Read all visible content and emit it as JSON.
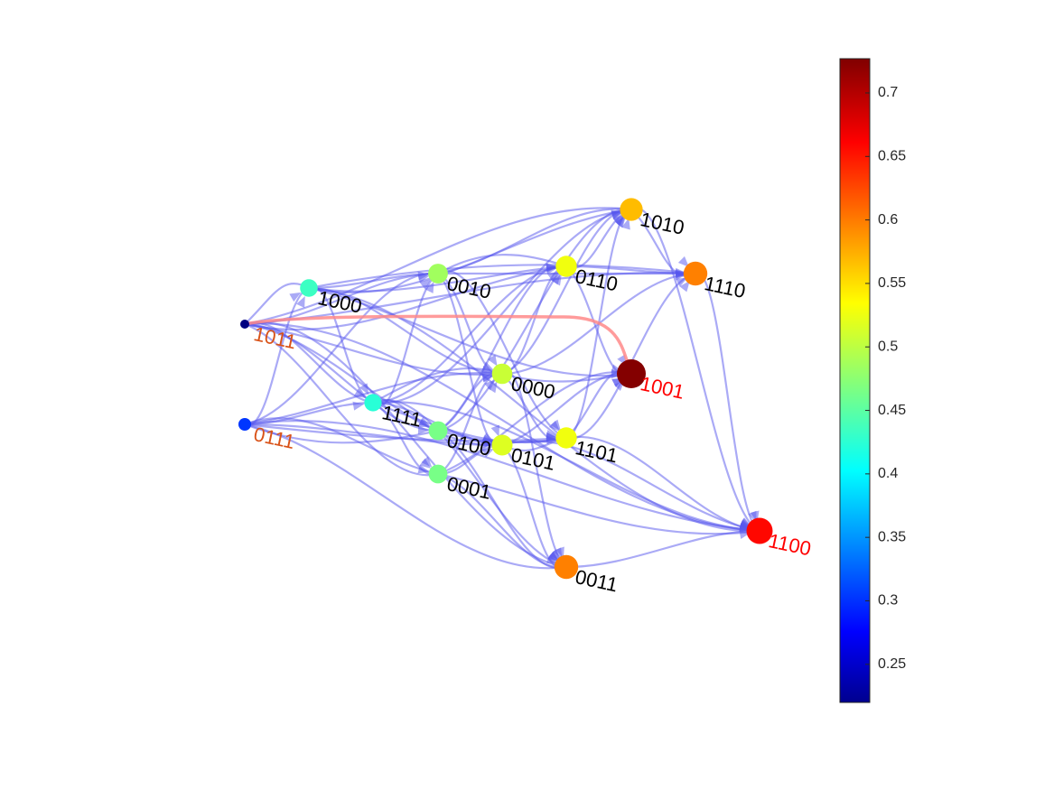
{
  "graph": {
    "nodes": [
      {
        "id": "1011",
        "value": 0.22,
        "label_color": "#d95319"
      },
      {
        "id": "0111",
        "value": 0.31,
        "label_color": "#d95319"
      },
      {
        "id": "1000",
        "value": 0.44,
        "label_color": "#000000"
      },
      {
        "id": "1111",
        "value": 0.43,
        "label_color": "#000000"
      },
      {
        "id": "0010",
        "value": 0.49,
        "label_color": "#000000"
      },
      {
        "id": "0100",
        "value": 0.47,
        "label_color": "#000000"
      },
      {
        "id": "0001",
        "value": 0.47,
        "label_color": "#000000"
      },
      {
        "id": "0000",
        "value": 0.51,
        "label_color": "#000000"
      },
      {
        "id": "0101",
        "value": 0.52,
        "label_color": "#000000"
      },
      {
        "id": "0110",
        "value": 0.53,
        "label_color": "#000000"
      },
      {
        "id": "1101",
        "value": 0.53,
        "label_color": "#000000"
      },
      {
        "id": "1010",
        "value": 0.57,
        "label_color": "#000000"
      },
      {
        "id": "1110",
        "value": 0.6,
        "label_color": "#000000"
      },
      {
        "id": "0011",
        "value": 0.6,
        "label_color": "#000000"
      },
      {
        "id": "1100",
        "value": 0.66,
        "label_color": "#ff0000"
      },
      {
        "id": "1001",
        "value": 0.725,
        "label_color": "#ff0000"
      }
    ],
    "edges": [
      [
        "1011",
        "1000"
      ],
      [
        "1011",
        "1111"
      ],
      [
        "1011",
        "0010"
      ],
      [
        "1011",
        "0000"
      ],
      [
        "1011",
        "0110"
      ],
      [
        "1011",
        "1010"
      ],
      [
        "1011",
        "1110"
      ],
      [
        "1011",
        "0100"
      ],
      [
        "1011",
        "0101"
      ],
      [
        "1011",
        "0001"
      ],
      [
        "1011",
        "0011"
      ],
      [
        "1011",
        "1100"
      ],
      [
        "0111",
        "1111"
      ],
      [
        "0111",
        "1000"
      ],
      [
        "0111",
        "0100"
      ],
      [
        "0111",
        "0001"
      ],
      [
        "0111",
        "0000"
      ],
      [
        "0111",
        "0101"
      ],
      [
        "0111",
        "1101"
      ],
      [
        "0111",
        "0011"
      ],
      [
        "0111",
        "1100"
      ],
      [
        "0111",
        "0010"
      ],
      [
        "1000",
        "0010"
      ],
      [
        "1000",
        "0110"
      ],
      [
        "1000",
        "1010"
      ],
      [
        "1000",
        "1110"
      ],
      [
        "1000",
        "1111"
      ],
      [
        "1000",
        "0000"
      ],
      [
        "1000",
        "1100"
      ],
      [
        "1000",
        "1001"
      ],
      [
        "1111",
        "0000"
      ],
      [
        "1111",
        "0100"
      ],
      [
        "1111",
        "0101"
      ],
      [
        "1111",
        "0001"
      ],
      [
        "1111",
        "1101"
      ],
      [
        "1111",
        "0011"
      ],
      [
        "1111",
        "1100"
      ],
      [
        "1111",
        "0110"
      ],
      [
        "1111",
        "1010"
      ],
      [
        "1111",
        "0010"
      ],
      [
        "0010",
        "0110"
      ],
      [
        "0010",
        "1010"
      ],
      [
        "0010",
        "1110"
      ],
      [
        "0010",
        "0000"
      ],
      [
        "0010",
        "0101"
      ],
      [
        "0010",
        "1101"
      ],
      [
        "0100",
        "0000"
      ],
      [
        "0100",
        "0101"
      ],
      [
        "0100",
        "1101"
      ],
      [
        "0100",
        "0011"
      ],
      [
        "0100",
        "0110"
      ],
      [
        "0100",
        "1010"
      ],
      [
        "0001",
        "0101"
      ],
      [
        "0001",
        "0011"
      ],
      [
        "0001",
        "1100"
      ],
      [
        "0001",
        "1001"
      ],
      [
        "0001",
        "0000"
      ],
      [
        "0000",
        "0110"
      ],
      [
        "0000",
        "1001"
      ],
      [
        "0000",
        "1101"
      ],
      [
        "0000",
        "0011"
      ],
      [
        "0000",
        "1010"
      ],
      [
        "0000",
        "1110"
      ],
      [
        "0101",
        "1101"
      ],
      [
        "0101",
        "0011"
      ],
      [
        "0101",
        "1100"
      ],
      [
        "0101",
        "1001"
      ],
      [
        "0110",
        "1110"
      ],
      [
        "0110",
        "1010"
      ],
      [
        "0110",
        "1001"
      ],
      [
        "1101",
        "1001"
      ],
      [
        "1101",
        "1100"
      ],
      [
        "1101",
        "1010"
      ],
      [
        "1101",
        "1110"
      ],
      [
        "1010",
        "1110"
      ],
      [
        "1010",
        "1100"
      ],
      [
        "1110",
        "1100"
      ],
      [
        "0011",
        "1100"
      ]
    ],
    "highlighted_edges": [
      [
        "1011",
        "1001"
      ]
    ],
    "edge_color": "#5555ee",
    "highlight_color": "#ff8a8a"
  },
  "colorbar": {
    "min": 0.22,
    "max": 0.727,
    "colormap": "jet",
    "ticks": [
      "0.25",
      "0.3",
      "0.35",
      "0.4",
      "0.45",
      "0.5",
      "0.55",
      "0.6",
      "0.65",
      "0.7"
    ]
  }
}
